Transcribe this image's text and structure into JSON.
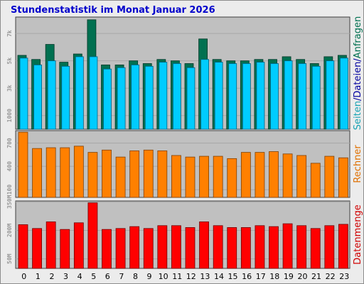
{
  "title": "Stundenstatistik im Monat Januar 2026",
  "colors": {
    "panel_bg": "#c0c0c0",
    "anfragen": "#007050",
    "seiten": "#00ccff",
    "rechner": "#ff8000",
    "datenmenge": "#ff0000",
    "label_seiten": "#17a3b5",
    "label_dateien": "#0000a0",
    "label_anfragen": "#007050",
    "label_rechner": "#e07000",
    "label_datenmenge": "#d00000"
  },
  "chart_data": [
    {
      "type": "bar",
      "name": "requests-panel",
      "categories": [
        "0",
        "1",
        "2",
        "3",
        "4",
        "5",
        "6",
        "7",
        "8",
        "9",
        "10",
        "11",
        "12",
        "13",
        "14",
        "15",
        "16",
        "17",
        "18",
        "19",
        "20",
        "21",
        "22",
        "23"
      ],
      "ylim": [
        0,
        8200
      ],
      "yticks": [
        "7k",
        "5k",
        "3k",
        "1000"
      ],
      "ytick_values": [
        7000,
        5000,
        3000,
        1000
      ],
      "axis_label_parts": [
        "Seiten",
        "Dateien",
        "Anfragen"
      ],
      "series": [
        {
          "name": "Anfragen",
          "values": [
            5400,
            5100,
            6200,
            4900,
            5500,
            8000,
            4700,
            4700,
            5000,
            4800,
            5100,
            5000,
            4800,
            6600,
            5100,
            5000,
            5000,
            5100,
            5100,
            5300,
            5100,
            4800,
            5300,
            5400
          ]
        },
        {
          "name": "Seiten",
          "values": [
            5200,
            4700,
            5000,
            4600,
            5300,
            5300,
            4400,
            4500,
            4700,
            4600,
            4900,
            4800,
            4500,
            5100,
            4900,
            4800,
            4800,
            4900,
            4800,
            5000,
            4800,
            4600,
            5000,
            5200
          ]
        }
      ]
    },
    {
      "type": "bar",
      "name": "hosts-panel",
      "categories": [
        "0",
        "1",
        "2",
        "3",
        "4",
        "5",
        "6",
        "7",
        "8",
        "9",
        "10",
        "11",
        "12",
        "13",
        "14",
        "15",
        "16",
        "17",
        "18",
        "19",
        "20",
        "21",
        "22",
        "23"
      ],
      "ylim": [
        0,
        860
      ],
      "yticks": [
        "700",
        "400",
        "100"
      ],
      "ytick_values": [
        700,
        400,
        100
      ],
      "axis_label": "Rechner",
      "series": [
        {
          "name": "Rechner",
          "values": [
            840,
            630,
            640,
            640,
            660,
            580,
            610,
            520,
            600,
            610,
            600,
            540,
            520,
            530,
            530,
            500,
            580,
            580,
            590,
            560,
            540,
            440,
            530,
            510
          ]
        }
      ]
    },
    {
      "type": "bar",
      "name": "volume-panel",
      "categories": [
        "0",
        "1",
        "2",
        "3",
        "4",
        "5",
        "6",
        "7",
        "8",
        "9",
        "10",
        "11",
        "12",
        "13",
        "14",
        "15",
        "16",
        "17",
        "18",
        "19",
        "20",
        "21",
        "22",
        "23"
      ],
      "ylim": [
        0,
        355
      ],
      "yticks": [
        "350M",
        "200M",
        "50M"
      ],
      "ytick_values": [
        350,
        200,
        50
      ],
      "axis_label": "Datenmenge",
      "series": [
        {
          "name": "Datenmenge",
          "values": [
            230,
            210,
            245,
            205,
            240,
            345,
            205,
            210,
            220,
            210,
            225,
            225,
            215,
            245,
            225,
            215,
            215,
            225,
            220,
            235,
            225,
            210,
            225,
            232
          ]
        }
      ]
    }
  ]
}
